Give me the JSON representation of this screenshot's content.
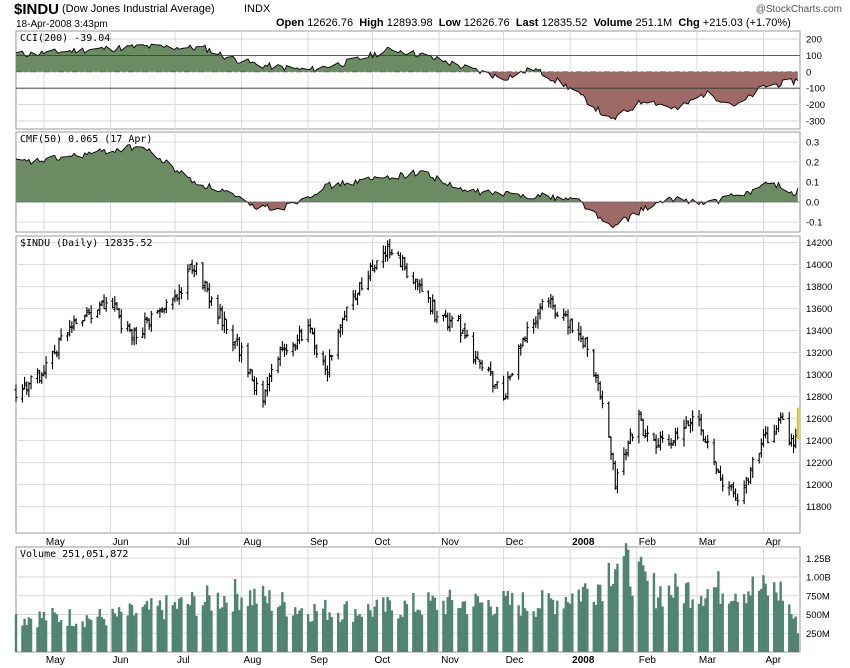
{
  "header": {
    "symbol": "$INDU",
    "name": "(Dow Jones Industrial Average)",
    "exchange": "INDX",
    "datetime": "18-Apr-2008 3:43pm",
    "watermark": "@StockCharts.com",
    "open_label": "Open",
    "open": "12626.76",
    "high_label": "High",
    "high": "12893.98",
    "low_label": "Low",
    "low": "12626.76",
    "last_label": "Last",
    "last": "12835.52",
    "volume_label": "Volume",
    "volume": "251.1M",
    "chg_label": "Chg",
    "chg": "+215.03 (+1.70%)"
  },
  "colors": {
    "fill_pos": "#6b8c62",
    "fill_neg": "#9e6a66",
    "volume": "#4f8470",
    "grid": "#d9d9d9",
    "last_bar": "#e6c200"
  },
  "chart_data": [
    {
      "type": "area",
      "title": "CCI(200) -39.04",
      "ylim": [
        -350,
        250
      ],
      "yticks": [
        "200",
        "100",
        "0",
        "-100",
        "-200",
        "-300"
      ],
      "x": [
        "2008-04-25",
        "2008-05-15",
        "2008-06-15",
        "2008-07-15",
        "2008-07-25",
        "2008-08-10",
        "2008-09-01",
        "2008-09-20",
        "2008-10-10",
        "2008-10-25",
        "2008-11-15",
        "2008-12-01",
        "2008-12-15",
        "2009-01-01",
        "2009-01-10",
        "2009-01-20",
        "2009-02-05",
        "2009-02-20",
        "2009-03-05",
        "2009-03-20",
        "2009-04-01",
        "2009-04-15",
        "2009-04-18"
      ],
      "values": [
        110,
        130,
        155,
        145,
        90,
        40,
        10,
        60,
        140,
        100,
        20,
        -40,
        20,
        -100,
        -190,
        -300,
        -170,
        -230,
        -130,
        -210,
        -90,
        -60,
        -39
      ]
    },
    {
      "type": "area",
      "title": "CMF(50) 0.065 (17 Apr)",
      "ylim": [
        -0.15,
        0.35
      ],
      "yticks": [
        "0.3",
        "0.2",
        "0.1",
        "0.0",
        "-0.1"
      ],
      "x": [
        "2008-04-25",
        "2008-05-15",
        "2008-06-15",
        "2008-07-10",
        "2008-07-25",
        "2008-08-05",
        "2008-08-20",
        "2008-09-10",
        "2008-10-05",
        "2008-10-25",
        "2008-11-10",
        "2008-12-01",
        "2008-12-20",
        "2009-01-05",
        "2009-01-20",
        "2009-02-05",
        "2009-02-20",
        "2009-03-05",
        "2009-03-25",
        "2009-04-05",
        "2009-04-15",
        "2009-04-18"
      ],
      "values": [
        0.2,
        0.23,
        0.28,
        0.1,
        0.05,
        -0.02,
        -0.03,
        0.08,
        0.12,
        0.15,
        0.06,
        0.04,
        0.03,
        0.01,
        -0.13,
        -0.03,
        0.02,
        -0.01,
        0.05,
        0.1,
        0.04,
        0.065
      ]
    },
    {
      "type": "bar",
      "title": "$INDU (Daily) 12835.52",
      "ylim": [
        11560,
        14260
      ],
      "yticks": [
        "14200",
        "14000",
        "13800",
        "13600",
        "13400",
        "13200",
        "13000",
        "12800",
        "12600",
        "12400",
        "12200",
        "12000",
        "11800"
      ],
      "x": [
        "2008-04-21",
        "2008-05-01",
        "2008-05-15",
        "2008-06-01",
        "2008-06-10",
        "2008-06-20",
        "2008-07-01",
        "2008-07-10",
        "2008-07-20",
        "2008-08-01",
        "2008-08-10",
        "2008-08-16",
        "2008-09-01",
        "2008-09-10",
        "2008-09-20",
        "2008-10-01",
        "2008-10-08",
        "2008-10-20",
        "2008-11-01",
        "2008-11-10",
        "2008-11-20",
        "2008-12-01",
        "2008-12-08",
        "2008-12-20",
        "2009-01-01",
        "2009-01-10",
        "2009-01-18",
        "2009-01-22",
        "2009-02-01",
        "2009-02-10",
        "2009-02-20",
        "2009-03-01",
        "2009-03-10",
        "2009-03-20",
        "2009-04-01",
        "2009-04-10",
        "2009-04-15",
        "2009-04-18"
      ],
      "values": [
        12850,
        13050,
        13500,
        13650,
        13350,
        13500,
        13700,
        14000,
        13600,
        13200,
        12750,
        13150,
        13400,
        13050,
        13650,
        13950,
        14120,
        13900,
        13500,
        13450,
        13100,
        12800,
        13200,
        13700,
        13450,
        13250,
        12500,
        12000,
        12600,
        12350,
        12400,
        12650,
        12100,
        11850,
        12400,
        12600,
        12300,
        12850
      ]
    },
    {
      "type": "bar",
      "title": "Volume 251,051,872",
      "ylim": [
        0,
        1400
      ],
      "yticks": [
        "1.25B",
        "1.00B",
        "750M",
        "500M",
        "250M"
      ],
      "x": [
        "2008-04-21",
        "2008-06-01",
        "2008-07-15",
        "2008-08-01",
        "2008-09-01",
        "2008-10-01",
        "2008-11-01",
        "2008-12-01",
        "2008-12-20",
        "2009-01-05",
        "2009-01-15",
        "2009-01-22",
        "2009-02-10",
        "2009-03-01",
        "2009-03-20",
        "2009-04-10",
        "2009-04-18"
      ],
      "values": [
        470,
        460,
        680,
        780,
        560,
        560,
        650,
        650,
        640,
        800,
        920,
        1250,
        820,
        830,
        870,
        800,
        251
      ]
    }
  ],
  "xaxis": {
    "months": [
      {
        "label": "May",
        "date": "2008-05-01",
        "bold": false
      },
      {
        "label": "Jun",
        "date": "2008-06-01",
        "bold": false
      },
      {
        "label": "Jul",
        "date": "2008-07-01",
        "bold": false
      },
      {
        "label": "Aug",
        "date": "2008-08-01",
        "bold": false
      },
      {
        "label": "Sep",
        "date": "2008-09-01",
        "bold": false
      },
      {
        "label": "Oct",
        "date": "2008-10-01",
        "bold": false
      },
      {
        "label": "Nov",
        "date": "2008-11-01",
        "bold": false
      },
      {
        "label": "Dec",
        "date": "2008-12-01",
        "bold": false
      },
      {
        "label": "2008",
        "date": "2009-01-01",
        "bold": true
      },
      {
        "label": "Feb",
        "date": "2009-02-01",
        "bold": false
      },
      {
        "label": "Mar",
        "date": "2009-03-01",
        "bold": false
      },
      {
        "label": "Apr",
        "date": "2009-04-01",
        "bold": false
      }
    ]
  }
}
